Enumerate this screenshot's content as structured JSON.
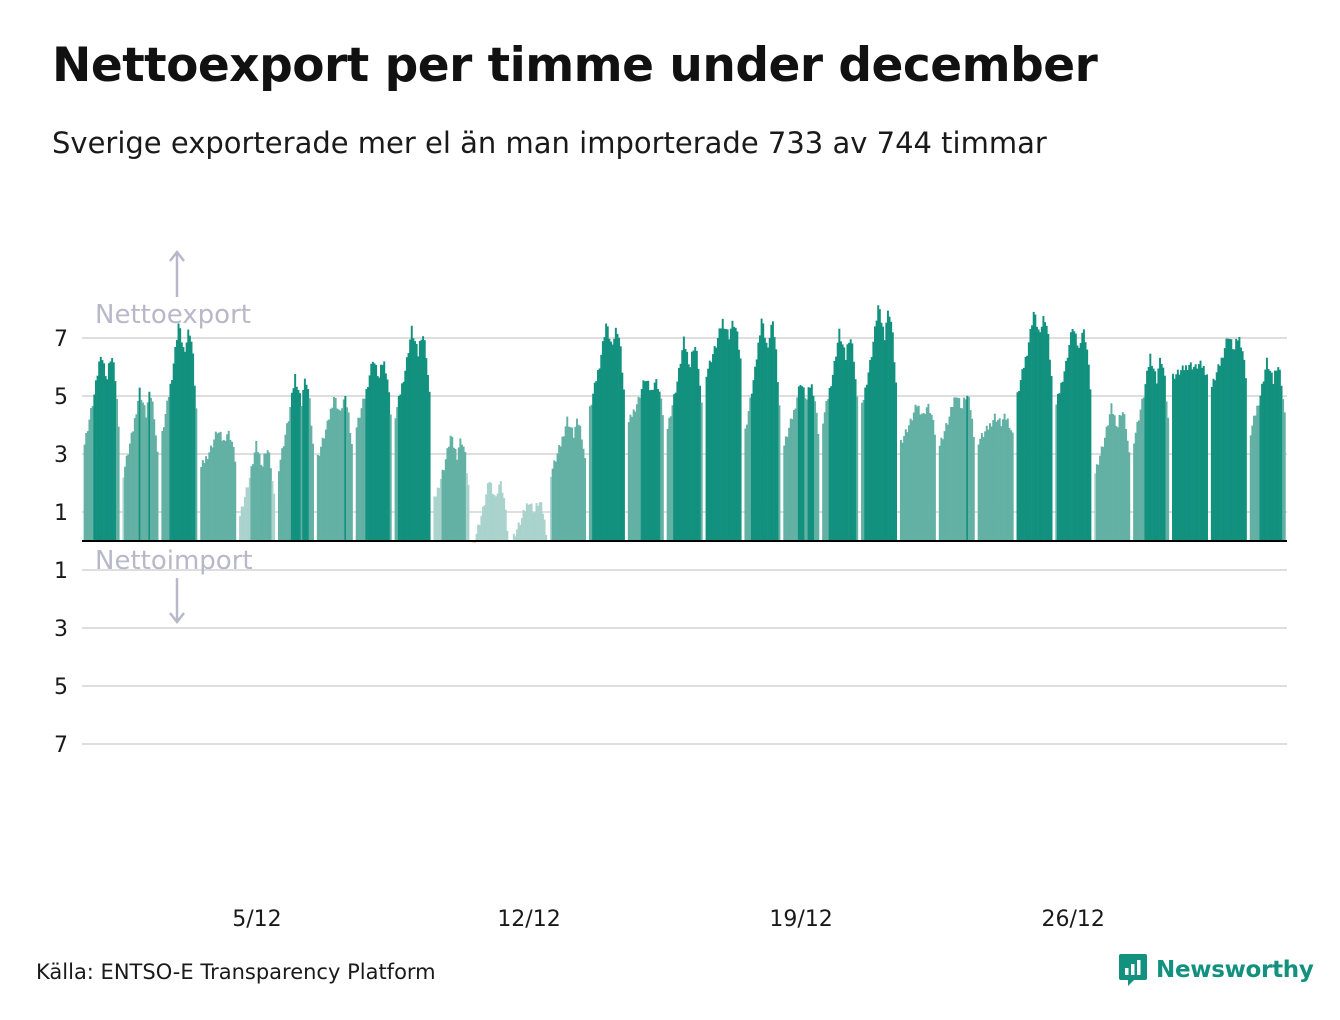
{
  "title": "Nettoexport per timme under december",
  "subtitle": "Sverige exporterade mer el än man importerade 733 av 744 timmar",
  "source": "Källa: ENTSO-E Transparency Platform",
  "brand": "Newsworthy",
  "direction_labels": {
    "up": "Nettoexport",
    "down": "Nettoimport"
  },
  "colors": {
    "export_dark": "#13917f",
    "export_mid": "#62b1a4",
    "export_light": "#a9d3cc",
    "import": "#f7c48a",
    "grid": "#dedede",
    "zero_line": "#000000",
    "direction_label": "#b9b8c9"
  },
  "chart_data": {
    "type": "bar",
    "x_label": "",
    "y_label": "",
    "ylim": [
      -7,
      7
    ],
    "y_ticks": [
      {
        "value": 7,
        "label": "7"
      },
      {
        "value": 5,
        "label": "5"
      },
      {
        "value": 3,
        "label": "3"
      },
      {
        "value": 1,
        "label": "1"
      },
      {
        "value": -1,
        "label": "1"
      },
      {
        "value": -3,
        "label": "3"
      },
      {
        "value": -5,
        "label": "5"
      },
      {
        "value": -7,
        "label": "7"
      }
    ],
    "x_ticks": [
      {
        "day": 5,
        "label": "5/12"
      },
      {
        "day": 12,
        "label": "12/12"
      },
      {
        "day": 19,
        "label": "19/12"
      },
      {
        "day": 26,
        "label": "26/12"
      }
    ],
    "grid": true,
    "hours": 744,
    "hours_export": 733,
    "daily_profile_gwh": [
      {
        "day": 1,
        "peak": 6.5,
        "low": 2.8
      },
      {
        "day": 2,
        "peak": 5.2,
        "low": 1.8
      },
      {
        "day": 3,
        "peak": 7.5,
        "low": 3.0
      },
      {
        "day": 4,
        "peak": 3.8,
        "low": 2.3
      },
      {
        "day": 5,
        "peak": 3.3,
        "low": 0.5
      },
      {
        "day": 6,
        "peak": 5.7,
        "low": 2.0
      },
      {
        "day": 7,
        "peak": 5.0,
        "low": 2.5
      },
      {
        "day": 8,
        "peak": 6.3,
        "low": 3.5
      },
      {
        "day": 9,
        "peak": 7.3,
        "low": 3.8
      },
      {
        "day": 10,
        "peak": 3.6,
        "low": 1.0
      },
      {
        "day": 11,
        "peak": 2.1,
        "low": -0.5
      },
      {
        "day": 12,
        "peak": 1.4,
        "low": -0.2
      },
      {
        "day": 13,
        "peak": 4.2,
        "low": 2.0
      },
      {
        "day": 14,
        "peak": 7.5,
        "low": 4.0
      },
      {
        "day": 15,
        "peak": 5.6,
        "low": 3.8
      },
      {
        "day": 16,
        "peak": 6.9,
        "low": 3.4
      },
      {
        "day": 17,
        "peak": 7.6,
        "low": 5.5
      },
      {
        "day": 18,
        "peak": 7.7,
        "low": 3.1
      },
      {
        "day": 19,
        "peak": 5.5,
        "low": 2.9
      },
      {
        "day": 20,
        "peak": 7.2,
        "low": 3.6
      },
      {
        "day": 21,
        "peak": 8.1,
        "low": 4.0
      },
      {
        "day": 22,
        "peak": 4.7,
        "low": 3.2
      },
      {
        "day": 23,
        "peak": 5.1,
        "low": 3.0
      },
      {
        "day": 24,
        "peak": 4.3,
        "low": 3.3
      },
      {
        "day": 25,
        "peak": 7.9,
        "low": 4.5
      },
      {
        "day": 26,
        "peak": 7.4,
        "low": 4.2
      },
      {
        "day": 27,
        "peak": 4.6,
        "low": 2.0
      },
      {
        "day": 28,
        "peak": 6.4,
        "low": 3.0
      },
      {
        "day": 29,
        "peak": 6.1,
        "low": 5.6
      },
      {
        "day": 30,
        "peak": 7.1,
        "low": 5.0
      },
      {
        "day": 31,
        "peak": 6.2,
        "low": 3.3
      }
    ]
  }
}
